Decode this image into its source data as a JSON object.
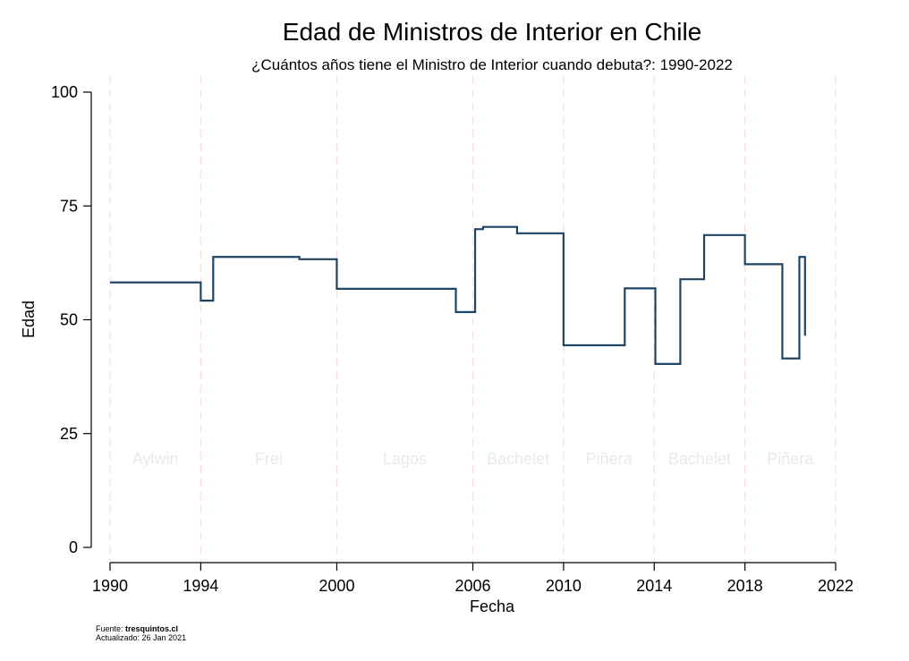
{
  "chart_data": {
    "type": "line",
    "step": true,
    "title": "Edad de Ministros de Interior en Chile",
    "subtitle": "¿Cuántos años tiene el Ministro de Interior cuando debuta?: 1990-2022",
    "xlabel": "Fecha",
    "ylabel": "Edad",
    "xlim": [
      1990,
      2022
    ],
    "ylim": [
      0,
      100
    ],
    "xticks": [
      1990,
      1994,
      2000,
      2006,
      2010,
      2014,
      2018,
      2022
    ],
    "yticks": [
      0,
      25,
      50,
      75,
      100
    ],
    "line_color": "#1f4565",
    "period_line_color": "#f4dede",
    "periods": [
      {
        "label": "Aylwin",
        "start": 1990,
        "end": 1994
      },
      {
        "label": "Frei",
        "start": 1994,
        "end": 2000
      },
      {
        "label": "Lagos",
        "start": 2000,
        "end": 2006
      },
      {
        "label": "Bachelet",
        "start": 2006,
        "end": 2010
      },
      {
        "label": "Piñera",
        "start": 2010,
        "end": 2014
      },
      {
        "label": "Bachelet",
        "start": 2014,
        "end": 2018
      },
      {
        "label": "Piñera",
        "start": 2018,
        "end": 2022
      }
    ],
    "x": [
      1990.0,
      1994.0,
      1994.55,
      1998.35,
      2000.0,
      2005.25,
      2006.1,
      2006.45,
      2007.95,
      2010.0,
      2012.7,
      2014.05,
      2015.15,
      2016.2,
      2018.0,
      2019.65,
      2020.4,
      2020.65
    ],
    "y": [
      58.2,
      54.2,
      63.8,
      63.3,
      56.8,
      51.7,
      69.9,
      70.4,
      69.0,
      44.4,
      56.9,
      40.3,
      58.9,
      68.6,
      62.2,
      41.5,
      63.8,
      46.5
    ],
    "x_end": 2020.65
  },
  "source": {
    "prefix": "Fuente: ",
    "site": "tresquintos.cl",
    "updated": "Actualizado: 26 Jan 2021"
  }
}
